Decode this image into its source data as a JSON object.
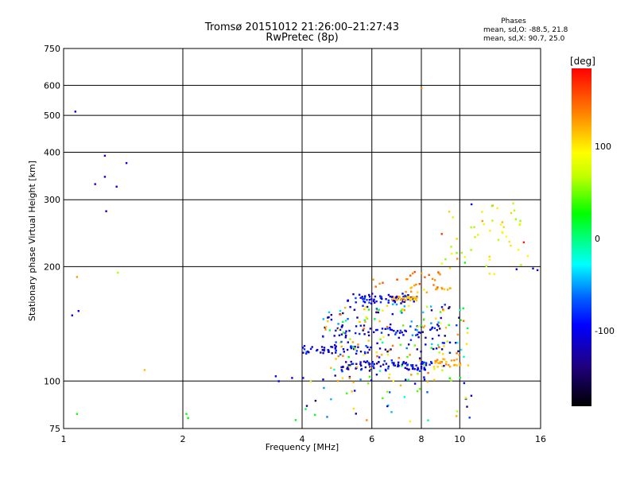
{
  "chart_data": {
    "type": "scatter",
    "title": "Tromsø 20151012 21:26:00–21:27:43",
    "subtitle": "RwPretec (8p)",
    "xlabel": "Frequency [MHz]",
    "ylabel": "Stationary phase Virtual Height [km]",
    "x_scale": "log",
    "y_scale": "log",
    "xlim": [
      1,
      16
    ],
    "ylim": [
      75,
      750
    ],
    "x_ticks": [
      "1",
      "2",
      "4",
      "6",
      "8",
      "10",
      "16"
    ],
    "y_ticks": [
      "75",
      "100",
      "200",
      "300",
      "400",
      "500",
      "600",
      "750"
    ],
    "grid": true,
    "phases_annotation": {
      "title": "Phases",
      "o_line": "mean, sd,O: -88.5, 21.8",
      "x_line": "mean, sd,X:  90.7, 25.0"
    },
    "colorbar": {
      "label": "[deg]",
      "ticks": [
        "100",
        "0",
        "-100"
      ],
      "range": [
        -180,
        180
      ]
    },
    "points": [
      [
        1.07,
        512,
        -100
      ],
      [
        1.2,
        330,
        -100
      ],
      [
        1.27,
        392,
        -100
      ],
      [
        1.27,
        345,
        -100
      ],
      [
        1.28,
        280,
        -100
      ],
      [
        1.36,
        325,
        -100
      ],
      [
        1.44,
        375,
        -100
      ],
      [
        1.05,
        149,
        -100
      ],
      [
        1.09,
        153,
        -100
      ],
      [
        1.08,
        188,
        120
      ],
      [
        1.08,
        82,
        0
      ],
      [
        1.37,
        193,
        40
      ],
      [
        1.6,
        107,
        100
      ],
      [
        2.04,
        82,
        0
      ],
      [
        2.06,
        80,
        0
      ],
      [
        3.43,
        103,
        -100
      ],
      [
        3.49,
        100,
        -100
      ],
      [
        3.77,
        102,
        -100
      ],
      [
        3.85,
        79,
        0
      ],
      [
        4.02,
        102,
        -100
      ],
      [
        8.0,
        590,
        130
      ],
      [
        9.0,
        244,
        160
      ],
      [
        10.7,
        292,
        -100
      ],
      [
        11.4,
        264,
        120
      ],
      [
        12.1,
        290,
        110
      ],
      [
        12.8,
        262,
        100
      ],
      [
        14.5,
        232,
        170
      ],
      [
        15.3,
        198,
        -100
      ],
      [
        15.7,
        196,
        -100
      ],
      [
        13.9,
        197,
        -100
      ],
      [
        9.85,
        210,
        130
      ],
      [
        10.3,
        205,
        0
      ]
    ],
    "clusters": [
      {
        "x_min": 5.2,
        "x_max": 7.8,
        "h_min": 160,
        "h_max": 170,
        "n": 70,
        "phase": -100
      },
      {
        "x_min": 6.7,
        "x_max": 7.8,
        "h_min": 163,
        "h_max": 167,
        "n": 30,
        "phase": 100
      },
      {
        "x_min": 7.3,
        "x_max": 9.5,
        "h_min": 171,
        "h_max": 178,
        "n": 15,
        "phase": 100
      },
      {
        "x_min": 4.0,
        "x_max": 6.0,
        "h_min": 118,
        "h_max": 124,
        "n": 50,
        "phase": -100
      },
      {
        "x_min": 5.0,
        "x_max": 8.5,
        "h_min": 107,
        "h_max": 113,
        "n": 90,
        "phase": -100
      },
      {
        "x_min": 8.6,
        "x_max": 10.3,
        "h_min": 109,
        "h_max": 115,
        "n": 25,
        "phase": 110
      },
      {
        "x_min": 4.8,
        "x_max": 9.0,
        "h_min": 130,
        "h_max": 140,
        "n": 60,
        "phase": -100
      },
      {
        "x_min": 4.5,
        "x_max": 10.5,
        "h_min": 100,
        "h_max": 160,
        "n": 220,
        "phase": 0
      },
      {
        "x_min": 4.0,
        "x_max": 11.0,
        "h_min": 78,
        "h_max": 100,
        "n": 40,
        "phase": 0
      },
      {
        "x_min": 6.0,
        "x_max": 9.3,
        "h_min": 175,
        "h_max": 195,
        "n": 25,
        "phase": 130
      },
      {
        "x_min": 9.0,
        "x_max": 15.0,
        "h_min": 190,
        "h_max": 295,
        "n": 45,
        "phase": 60
      }
    ]
  }
}
